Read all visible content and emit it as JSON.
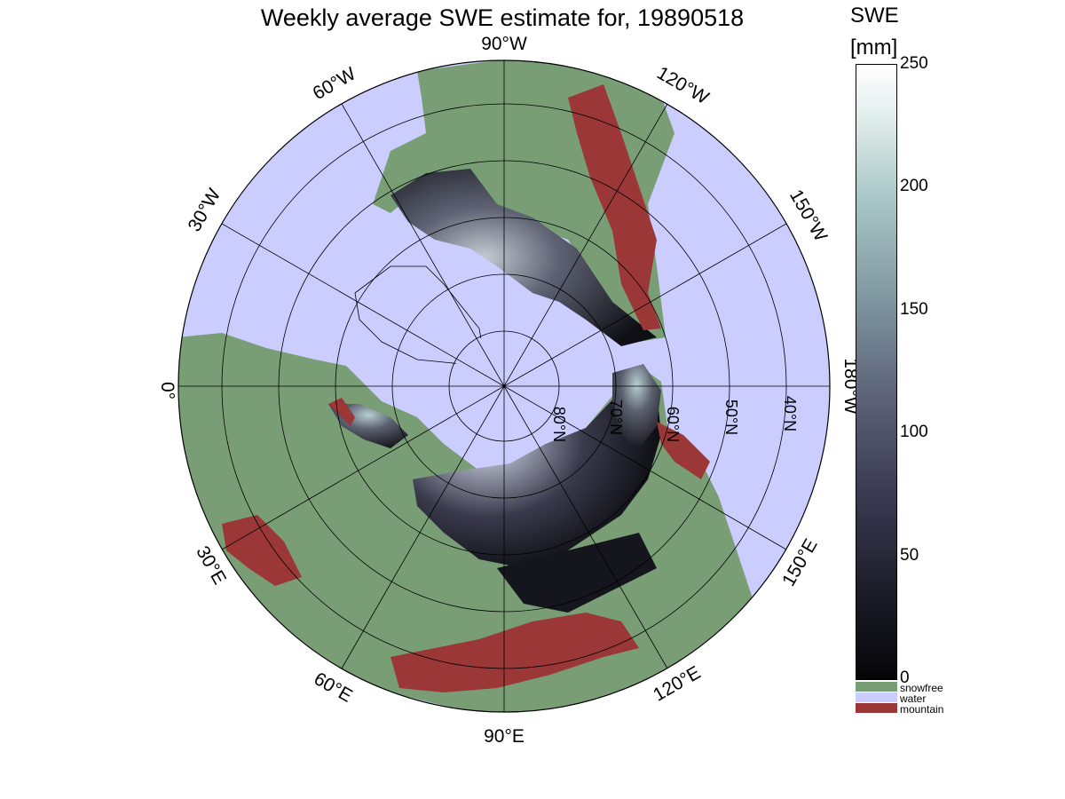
{
  "title": "Weekly average SWE estimate for, 19890518",
  "colorbar": {
    "heading_line1": "SWE",
    "heading_line2": "[mm]",
    "ticks": [
      "250",
      "200",
      "150",
      "100",
      "50",
      "0"
    ],
    "categories": [
      {
        "label": "snowfree",
        "color": "#799e76"
      },
      {
        "label": "water",
        "color": "#cccdff"
      },
      {
        "label": "mountain",
        "color": "#9b3737"
      }
    ]
  },
  "longitude_labels": {
    "lon_90w": "90°W",
    "lon_120w": "120°W",
    "lon_150w": "150°W",
    "lon_180w": "180°W",
    "lon_150e": "150°E",
    "lon_120e": "120°E",
    "lon_90e": "90°E",
    "lon_60e": "60°E",
    "lon_30e": "30°E",
    "lon_0": "0°",
    "lon_30w": "30°W",
    "lon_60w": "60°W"
  },
  "latitude_labels": {
    "lat_80n": "80°N",
    "lat_70n": "70°N",
    "lat_60n": "60°N",
    "lat_50n": "50°N",
    "lat_40n": "40°N"
  },
  "colors": {
    "water": "#cccdff",
    "snowfree": "#799e76",
    "mountain": "#9b3737",
    "snow_dark": "#15151d"
  }
}
